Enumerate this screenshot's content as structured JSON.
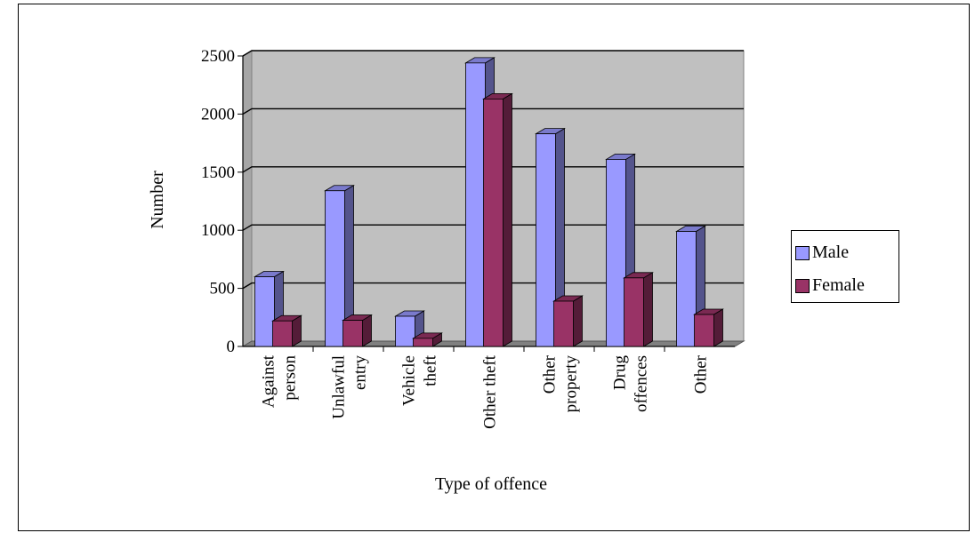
{
  "chart_data": {
    "type": "bar",
    "title": "",
    "xlabel": "Type of offence",
    "ylabel": "Number",
    "ylim": [
      0,
      2500
    ],
    "yticks": [
      0,
      500,
      1000,
      1500,
      2000,
      2500
    ],
    "grid": true,
    "legend": "right",
    "categories": [
      [
        "Against",
        "person"
      ],
      [
        "Unlawful",
        "entry"
      ],
      [
        "Vehicle",
        "theft"
      ],
      [
        "Other theft"
      ],
      [
        "Other",
        "property"
      ],
      [
        "Drug",
        "offences"
      ],
      [
        "Other"
      ]
    ],
    "series": [
      {
        "name": "Male",
        "color": "#9999FF",
        "values": [
          600,
          1340,
          260,
          2440,
          1830,
          1610,
          990
        ]
      },
      {
        "name": "Female",
        "color": "#993366",
        "values": [
          220,
          225,
          70,
          2130,
          390,
          590,
          275
        ]
      }
    ]
  }
}
